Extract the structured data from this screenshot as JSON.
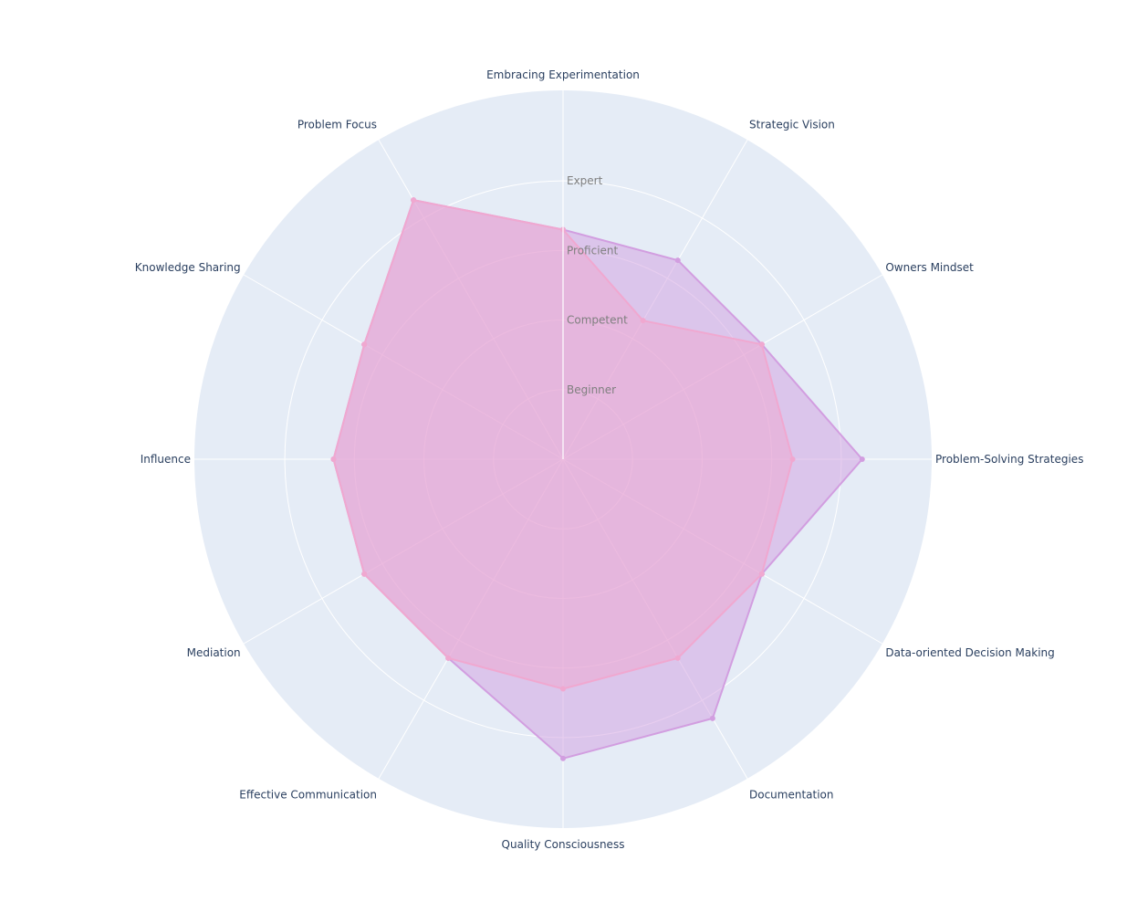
{
  "chart_data": {
    "type": "radar",
    "categories": [
      "Embracing Experimentation",
      "Strategic Vision",
      "Owners Mindset",
      "Problem-Solving Strategies",
      "Data-oriented Decision Making",
      "Documentation",
      "Quality Consciousness",
      "Effective Communication",
      "Mediation",
      "Influence",
      "Knowledge Sharing",
      "Problem Focus"
    ],
    "radial_tick_values": [
      1,
      2,
      3,
      4
    ],
    "radial_tick_labels": [
      "Beginner",
      "Competent",
      "Proficient",
      "Expert"
    ],
    "radial_range": [
      0,
      5.3
    ],
    "series": [
      {
        "values": [
          3.3,
          3.3,
          3.3,
          4.3,
          3.3,
          4.3,
          4.3,
          3.3,
          3.3,
          3.3,
          3.3,
          4.3
        ],
        "color": "#d29ee0"
      },
      {
        "values": [
          3.3,
          2.3,
          3.3,
          3.3,
          3.3,
          3.3,
          3.3,
          3.3,
          3.3,
          3.3,
          3.3,
          4.3
        ],
        "color": "#f0a8d0"
      }
    ],
    "grid": true,
    "legend": "none",
    "background": "#e5ecf6"
  }
}
